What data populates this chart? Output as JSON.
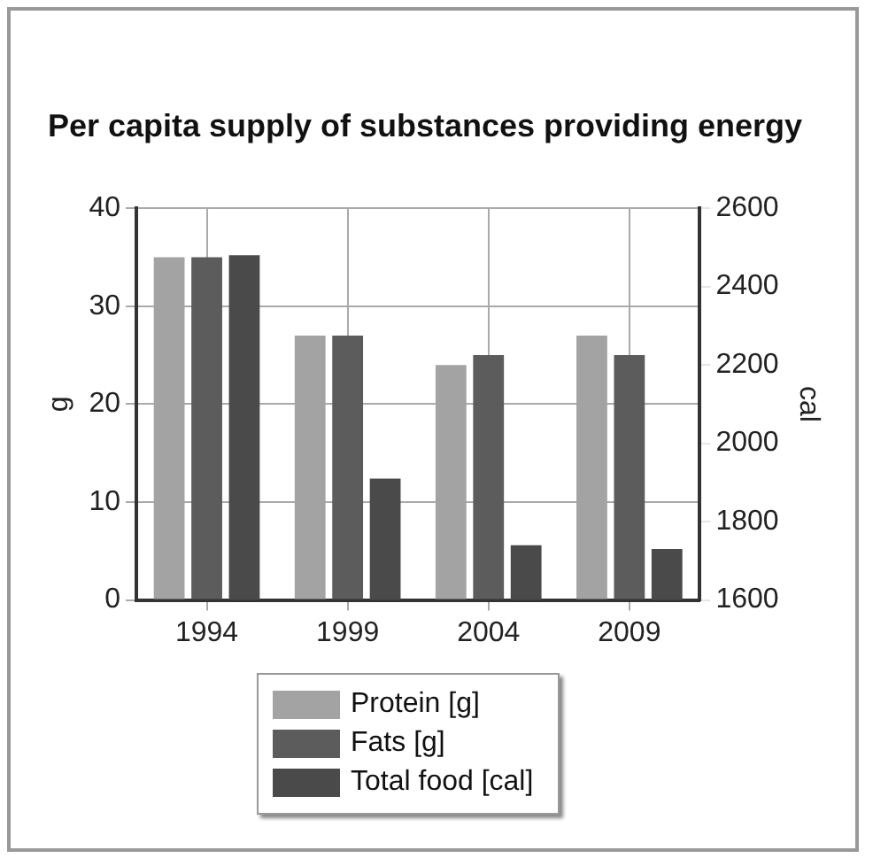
{
  "chart_data": {
    "type": "bar",
    "title": "Per capita supply of substances providing energy",
    "categories": [
      "1994",
      "1999",
      "2004",
      "2009"
    ],
    "ylabel": "g",
    "y2label": "cal",
    "series": [
      {
        "name": "Protein [g]",
        "color": "#a3a3a3",
        "values": [
          35,
          27,
          24,
          27
        ]
      },
      {
        "name": "Fats [g]",
        "color": "#5c5c5c",
        "values": [
          35,
          27,
          25,
          25
        ]
      },
      {
        "name": "Total food [cal]",
        "color": "#4a4a4a",
        "values": [
          2480,
          1910,
          1740,
          1730
        ],
        "axis": "y2"
      }
    ],
    "ylim": [
      0,
      40
    ],
    "yticks": [
      0,
      10,
      20,
      30,
      40
    ],
    "y2lim": [
      1600,
      2600
    ],
    "y2ticks": [
      1600,
      1800,
      2000,
      2200,
      2400,
      2600
    ],
    "grid": true,
    "legend": "bottom"
  }
}
